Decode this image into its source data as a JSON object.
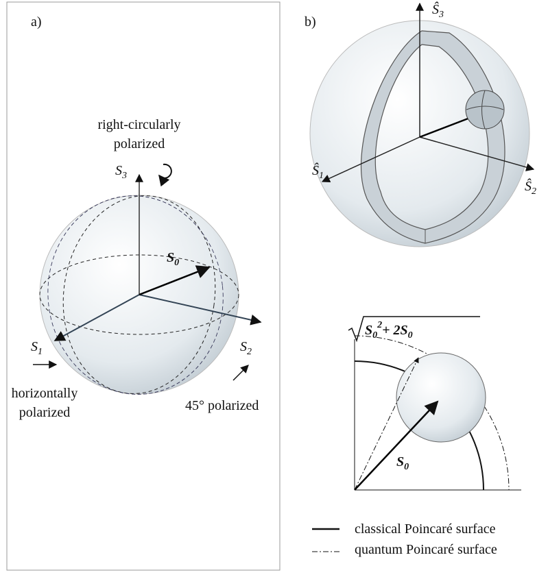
{
  "panel_a": {
    "label": "a)",
    "circular_label": [
      "right-circularly",
      "polarized"
    ],
    "s3": {
      "base": "S",
      "sub": "3"
    },
    "s0": {
      "base": "S",
      "sub": "0"
    },
    "s1": {
      "base": "S",
      "sub": "1"
    },
    "s2": {
      "base": "S",
      "sub": "2"
    },
    "horizontal_label": [
      "horizontally",
      "polarized"
    ],
    "diagonal_label": "45° polarized"
  },
  "panel_b": {
    "label": "b)",
    "s3": {
      "base": "Ŝ",
      "sub": "3"
    },
    "s1": {
      "base": "Ŝ",
      "sub": "1"
    },
    "s2": {
      "base": "Ŝ",
      "sub": "2"
    }
  },
  "inset": {
    "formula": [
      {
        "base": "S",
        "sub": "0",
        "sup": "2"
      },
      {
        "base": "+ 2S",
        "sub": "0"
      }
    ],
    "s0": {
      "base": "S",
      "sub": "0"
    }
  },
  "legend": [
    {
      "label": "classical Poincaré surface"
    },
    {
      "label": "quantum Poincaré surface"
    }
  ]
}
